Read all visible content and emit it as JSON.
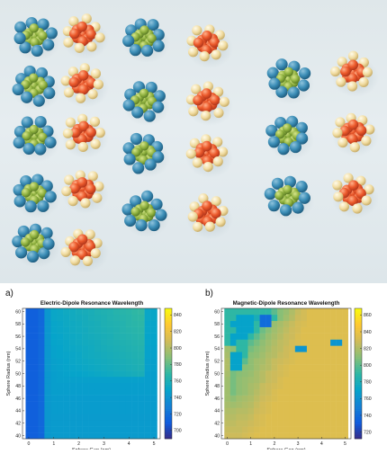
{
  "chart_data": [
    {
      "type": "heatmap",
      "panel_label": "a)",
      "title": "Electric-Dipole Resonance Wavelength",
      "xlabel": "Sphere Gap (nm)",
      "ylabel": "Sphere Radius (nm)",
      "x_ticks": [
        "0",
        "1",
        "2",
        "3",
        "4",
        "5"
      ],
      "y_ticks": [
        "40",
        "42",
        "44",
        "46",
        "48",
        "50",
        "52",
        "54",
        "56",
        "58",
        "60"
      ],
      "x": [
        0,
        0.25,
        0.5,
        0.75,
        1,
        1.25,
        1.5,
        1.75,
        2,
        2.25,
        2.5,
        2.75,
        3,
        3.25,
        3.5,
        3.75,
        4,
        4.25,
        4.5,
        4.75,
        5
      ],
      "y": [
        40,
        41,
        42,
        43,
        44,
        45,
        46,
        47,
        48,
        49,
        50,
        51,
        52,
        53,
        54,
        55,
        56,
        57,
        58,
        59,
        60
      ],
      "xlim": [
        -0.25,
        5.25
      ],
      "ylim": [
        39.5,
        60.5
      ],
      "colorbar": {
        "ticks": [
          700,
          720,
          740,
          760,
          780,
          800,
          820,
          840
        ],
        "range": [
          690,
          848
        ]
      },
      "colors": [
        "#352a87",
        "#0f5cdd",
        "#1481d6",
        "#06a4ca",
        "#2eb7a4",
        "#87bf77",
        "#d1bb59",
        "#fec832",
        "#f9fb0e"
      ],
      "values": [
        [
          712,
          712,
          715,
          742,
          744,
          744,
          744,
          744,
          744,
          744,
          744,
          744,
          744,
          744,
          744,
          744,
          744,
          744,
          744,
          744,
          744
        ],
        [
          712,
          712,
          716,
          742,
          744,
          744,
          744,
          744,
          744,
          744,
          744,
          744,
          744,
          744,
          744,
          744,
          744,
          744,
          744,
          744,
          744
        ],
        [
          712,
          712,
          716,
          742,
          744,
          744,
          744,
          744,
          744,
          744,
          744,
          744,
          744,
          744,
          744,
          744,
          744,
          744,
          744,
          744,
          744
        ],
        [
          712,
          712,
          716,
          742,
          744,
          744,
          744,
          744,
          744,
          744,
          744,
          744,
          744,
          744,
          744,
          744,
          744,
          744,
          744,
          744,
          744
        ],
        [
          712,
          712,
          716,
          742,
          745,
          745,
          745,
          745,
          745,
          745,
          745,
          745,
          745,
          745,
          745,
          745,
          745,
          745,
          745,
          745,
          745
        ],
        [
          712,
          712,
          716,
          742,
          745,
          745,
          745,
          745,
          745,
          745,
          745,
          745,
          745,
          745,
          745,
          745,
          745,
          745,
          745,
          745,
          745
        ],
        [
          712,
          712,
          716,
          742,
          745,
          745,
          745,
          745,
          745,
          745,
          745,
          745,
          745,
          745,
          745,
          745,
          745,
          745,
          745,
          745,
          745
        ],
        [
          712,
          712,
          716,
          742,
          746,
          746,
          746,
          746,
          746,
          746,
          746,
          746,
          746,
          746,
          746,
          746,
          746,
          746,
          746,
          746,
          746
        ],
        [
          712,
          712,
          716,
          742,
          746,
          746,
          746,
          746,
          746,
          746,
          746,
          746,
          746,
          746,
          746,
          746,
          746,
          746,
          746,
          746,
          746
        ],
        [
          712,
          712,
          716,
          742,
          746,
          747,
          747,
          747,
          747,
          747,
          747,
          747,
          747,
          747,
          747,
          747,
          747,
          747,
          747,
          746,
          746
        ],
        [
          712,
          712,
          716,
          742,
          746,
          747,
          748,
          749,
          749,
          750,
          751,
          752,
          753,
          754,
          755,
          756,
          757,
          758,
          759,
          746,
          746
        ],
        [
          712,
          712,
          716,
          742,
          747,
          748,
          749,
          750,
          751,
          752,
          753,
          754,
          755,
          756,
          757,
          758,
          759,
          760,
          761,
          747,
          747
        ],
        [
          712,
          712,
          716,
          742,
          747,
          748,
          749,
          751,
          752,
          753,
          754,
          755,
          756,
          757,
          758,
          759,
          760,
          761,
          762,
          747,
          747
        ],
        [
          712,
          712,
          716,
          742,
          748,
          749,
          750,
          751,
          752,
          754,
          755,
          756,
          757,
          758,
          759,
          760,
          761,
          762,
          763,
          748,
          748
        ],
        [
          712,
          712,
          716,
          742,
          748,
          749,
          751,
          752,
          753,
          754,
          755,
          757,
          758,
          759,
          760,
          761,
          762,
          763,
          764,
          748,
          748
        ],
        [
          712,
          712,
          716,
          742,
          749,
          750,
          751,
          753,
          754,
          755,
          756,
          757,
          759,
          760,
          761,
          762,
          763,
          764,
          765,
          749,
          749
        ],
        [
          712,
          712,
          716,
          742,
          749,
          750,
          752,
          753,
          754,
          756,
          757,
          758,
          759,
          760,
          762,
          763,
          764,
          765,
          766,
          749,
          749
        ],
        [
          712,
          712,
          716,
          742,
          750,
          751,
          752,
          754,
          755,
          756,
          758,
          759,
          760,
          761,
          762,
          764,
          765,
          766,
          767,
          750,
          750
        ],
        [
          712,
          712,
          716,
          742,
          750,
          751,
          753,
          754,
          755,
          757,
          758,
          759,
          761,
          762,
          763,
          764,
          766,
          767,
          768,
          750,
          750
        ],
        [
          712,
          712,
          716,
          742,
          751,
          752,
          753,
          755,
          756,
          757,
          759,
          760,
          761,
          763,
          764,
          765,
          766,
          768,
          769,
          751,
          751
        ],
        [
          712,
          712,
          716,
          742,
          751,
          752,
          754,
          755,
          757,
          758,
          759,
          761,
          762,
          763,
          765,
          766,
          767,
          769,
          770,
          751,
          751
        ]
      ]
    },
    {
      "type": "heatmap",
      "panel_label": "b)",
      "title": "Magnetic-Dipole Resonance Wavelength",
      "xlabel": "Sphere Gap (nm)",
      "ylabel": "Sphere Radius (nm)",
      "x_ticks": [
        "0",
        "1",
        "2",
        "3",
        "4",
        "5"
      ],
      "y_ticks": [
        "40",
        "42",
        "44",
        "46",
        "48",
        "50",
        "52",
        "54",
        "56",
        "58",
        "60"
      ],
      "x": [
        0,
        0.25,
        0.5,
        0.75,
        1,
        1.25,
        1.5,
        1.75,
        2,
        2.25,
        2.5,
        2.75,
        3,
        3.25,
        3.5,
        3.75,
        4,
        4.25,
        4.5,
        4.75,
        5
      ],
      "y": [
        40,
        41,
        42,
        43,
        44,
        45,
        46,
        47,
        48,
        49,
        50,
        51,
        52,
        53,
        54,
        55,
        56,
        57,
        58,
        59,
        60
      ],
      "xlim": [
        -0.25,
        5.25
      ],
      "ylim": [
        39.5,
        60.5
      ],
      "colorbar": {
        "ticks": [
          720,
          740,
          760,
          780,
          800,
          820,
          840,
          860
        ],
        "range": [
          712,
          868
        ]
      },
      "colors": [
        "#352a87",
        "#0f5cdd",
        "#1481d6",
        "#06a4ca",
        "#2eb7a4",
        "#87bf77",
        "#d1bb59",
        "#fec832",
        "#f9fb0e"
      ],
      "values": [
        [
          828,
          828,
          828,
          830,
          832,
          834,
          834,
          834,
          834,
          834,
          834,
          834,
          834,
          834,
          834,
          834,
          834,
          834,
          834,
          834,
          834
        ],
        [
          826,
          826,
          826,
          828,
          830,
          832,
          834,
          834,
          834,
          834,
          834,
          834,
          834,
          834,
          834,
          834,
          834,
          834,
          834,
          834,
          834
        ],
        [
          824,
          824,
          826,
          826,
          828,
          830,
          832,
          834,
          834,
          834,
          834,
          834,
          834,
          834,
          834,
          834,
          834,
          834,
          834,
          834,
          834
        ],
        [
          822,
          822,
          824,
          824,
          826,
          830,
          832,
          834,
          834,
          834,
          834,
          834,
          834,
          834,
          834,
          834,
          834,
          834,
          834,
          834,
          834
        ],
        [
          820,
          820,
          822,
          822,
          824,
          828,
          830,
          832,
          834,
          834,
          834,
          834,
          834,
          834,
          834,
          834,
          834,
          834,
          834,
          834,
          834
        ],
        [
          818,
          816,
          818,
          820,
          822,
          826,
          830,
          832,
          834,
          834,
          834,
          834,
          834,
          834,
          834,
          834,
          834,
          834,
          834,
          834,
          834
        ],
        [
          816,
          812,
          816,
          818,
          820,
          824,
          828,
          830,
          832,
          834,
          834,
          834,
          834,
          834,
          834,
          834,
          834,
          834,
          834,
          834,
          834
        ],
        [
          816,
          806,
          812,
          814,
          818,
          822,
          826,
          828,
          832,
          834,
          834,
          834,
          834,
          834,
          834,
          834,
          834,
          834,
          834,
          834,
          834
        ],
        [
          816,
          806,
          812,
          814,
          818,
          820,
          826,
          828,
          830,
          832,
          834,
          834,
          834,
          834,
          834,
          834,
          834,
          834,
          834,
          834,
          834
        ],
        [
          816,
          806,
          812,
          814,
          816,
          818,
          822,
          826,
          828,
          832,
          834,
          834,
          834,
          834,
          834,
          834,
          834,
          834,
          834,
          834,
          834
        ],
        [
          818,
          806,
          810,
          812,
          814,
          818,
          822,
          826,
          828,
          830,
          832,
          834,
          834,
          834,
          834,
          834,
          834,
          834,
          834,
          834,
          834
        ],
        [
          820,
          770,
          770,
          810,
          812,
          816,
          820,
          822,
          826,
          830,
          832,
          834,
          834,
          834,
          834,
          834,
          834,
          834,
          834,
          834,
          834
        ],
        [
          820,
          770,
          770,
          800,
          812,
          816,
          818,
          822,
          826,
          828,
          830,
          832,
          834,
          834,
          834,
          834,
          834,
          834,
          834,
          834,
          834
        ],
        [
          818,
          770,
          770,
          790,
          810,
          812,
          816,
          820,
          822,
          826,
          828,
          832,
          834,
          834,
          834,
          834,
          834,
          834,
          834,
          834,
          834
        ],
        [
          816,
          810,
          790,
          790,
          806,
          810,
          814,
          818,
          822,
          824,
          828,
          830,
          762,
          762,
          834,
          834,
          834,
          834,
          834,
          834,
          834
        ],
        [
          790,
          770,
          790,
          790,
          800,
          806,
          812,
          816,
          820,
          824,
          826,
          830,
          832,
          834,
          834,
          834,
          834,
          834,
          762,
          762,
          834
        ],
        [
          790,
          770,
          770,
          770,
          790,
          800,
          808,
          814,
          818,
          822,
          826,
          828,
          832,
          834,
          834,
          834,
          834,
          834,
          834,
          834,
          834
        ],
        [
          790,
          790,
          770,
          770,
          770,
          790,
          804,
          810,
          816,
          820,
          824,
          828,
          830,
          834,
          834,
          834,
          834,
          834,
          834,
          834,
          834
        ],
        [
          790,
          770,
          770,
          770,
          770,
          790,
          740,
          740,
          814,
          818,
          822,
          826,
          830,
          832,
          834,
          834,
          834,
          834,
          834,
          834,
          834
        ],
        [
          790,
          790,
          770,
          770,
          770,
          780,
          740,
          740,
          790,
          810,
          816,
          822,
          828,
          830,
          834,
          834,
          834,
          834,
          834,
          834,
          834
        ],
        [
          790,
          790,
          790,
          790,
          790,
          790,
          790,
          790,
          800,
          810,
          814,
          820,
          826,
          830,
          834,
          834,
          834,
          834,
          834,
          834,
          834
        ]
      ]
    }
  ]
}
